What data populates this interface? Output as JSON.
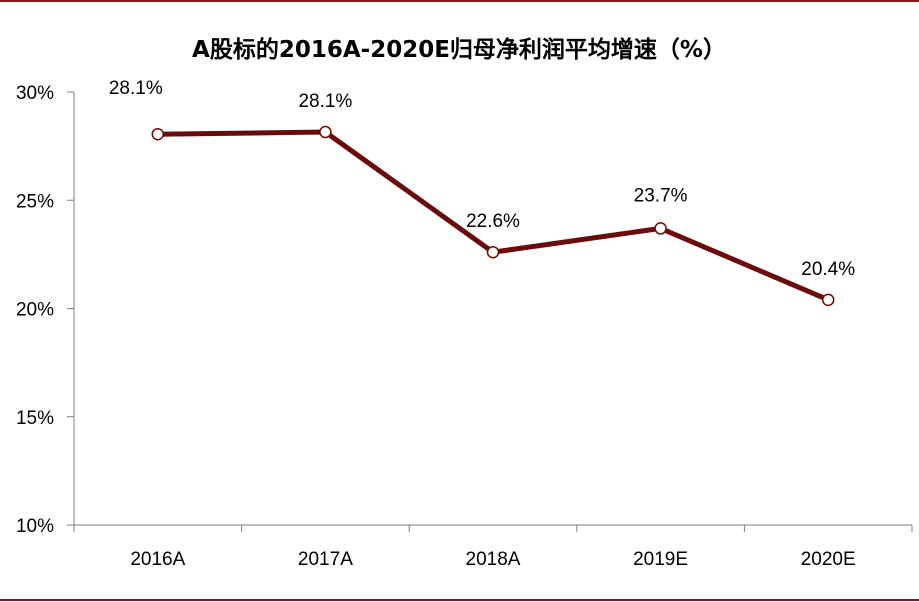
{
  "chart_data": {
    "type": "line",
    "title": "A股标的2016A-2020E归母净利润平均增速（%）",
    "xlabel": "",
    "ylabel": "",
    "categories": [
      "2016A",
      "2017A",
      "2018A",
      "2019E",
      "2020E"
    ],
    "series": [
      {
        "values": [
          28.05,
          28.15,
          22.6,
          23.7,
          20.4
        ],
        "data_labels": [
          "28.1%",
          "28.1%",
          "22.6%",
          "23.7%",
          "20.4%"
        ]
      }
    ],
    "ylim": [
      10,
      30
    ],
    "yticks": [
      10,
      15,
      20,
      25,
      30
    ],
    "ytick_labels": [
      "10%",
      "15%",
      "20%",
      "25%",
      "30%"
    ],
    "grid": false,
    "legend": "none",
    "colors": {
      "line": "#6b0a0a",
      "marker_fill": "#ffffff",
      "frame": "#7f1d1d",
      "axis": "#7f7f7f"
    }
  }
}
